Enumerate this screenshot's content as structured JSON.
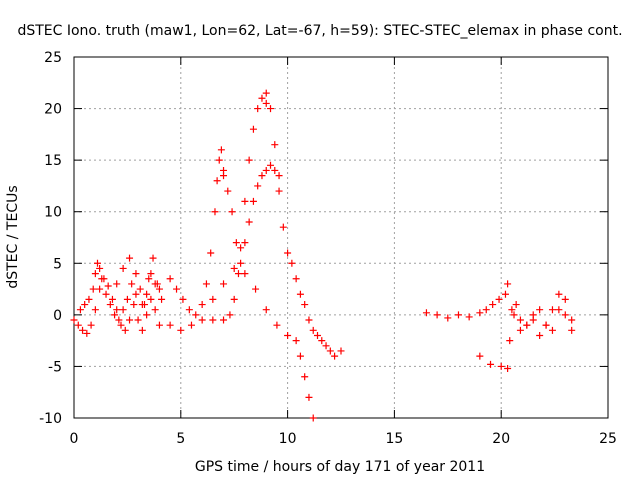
{
  "chart_data": {
    "type": "scatter",
    "title": "dSTEC Iono. truth (maw1, Lon=62, Lat=-67, h=59): STEC-STEC_elemax in phase cont.",
    "xlabel": "GPS time / hours of day 171 of year 2011",
    "ylabel": "dSTEC  / TECUs",
    "xlim": [
      0,
      25
    ],
    "ylim": [
      -10,
      25
    ],
    "xticks": [
      0,
      5,
      10,
      15,
      20,
      25
    ],
    "yticks": [
      -10,
      -5,
      0,
      5,
      10,
      15,
      20,
      25
    ],
    "grid": true,
    "marker": "+",
    "color": "#ff0000",
    "series": [
      {
        "x": [
          0.0,
          0.2,
          0.4,
          0.6,
          0.8,
          1.0,
          1.2,
          1.4,
          1.6,
          1.8,
          2.0,
          2.2,
          2.4,
          2.6,
          2.8,
          3.0,
          3.2,
          3.4,
          3.6,
          3.8,
          4.0
        ],
        "y": [
          -0.5,
          -1.0,
          -1.5,
          -1.8,
          -1.0,
          0.5,
          2.5,
          3.5,
          2.8,
          1.5,
          0.5,
          -1.0,
          -1.5,
          -0.5,
          1.0,
          -0.5,
          -1.5,
          0.0,
          1.5,
          0.5,
          -1.0
        ]
      },
      {
        "x": [
          0.3,
          0.5,
          0.7,
          0.9,
          1.0,
          1.1,
          1.2,
          1.3,
          1.5,
          1.7,
          1.9,
          2.1,
          2.3,
          2.5,
          2.7,
          2.9,
          3.1,
          3.3,
          3.5,
          3.7,
          3.9,
          4.1
        ],
        "y": [
          0.5,
          1.0,
          1.5,
          2.5,
          4.0,
          5.0,
          4.5,
          3.5,
          2.0,
          1.0,
          0.0,
          -0.5,
          0.5,
          1.5,
          3.0,
          4.0,
          2.5,
          1.0,
          3.5,
          5.5,
          3.0,
          1.5
        ]
      },
      {
        "x": [
          2.0,
          2.3,
          2.6,
          2.9,
          3.2,
          3.4,
          3.6,
          3.8,
          4.0
        ],
        "y": [
          3.0,
          4.5,
          5.5,
          2.0,
          1.0,
          2.0,
          4.0,
          3.0,
          2.5
        ]
      },
      {
        "x": [
          4.5,
          4.8,
          5.1,
          5.4,
          5.7,
          6.0,
          6.2,
          6.4,
          6.6,
          6.7,
          6.8,
          6.9,
          7.0
        ],
        "y": [
          3.5,
          2.5,
          1.5,
          0.5,
          0.0,
          1.0,
          3.0,
          6.0,
          10.0,
          13.0,
          15.0,
          16.0,
          14.0
        ]
      },
      {
        "x": [
          4.5,
          5.0,
          5.5,
          6.0,
          6.5,
          7.0,
          7.3,
          7.5,
          7.7,
          7.8,
          8.0,
          8.2,
          8.4,
          8.6,
          8.8,
          9.0
        ],
        "y": [
          -1.0,
          -1.5,
          -1.0,
          -0.5,
          -0.5,
          -0.5,
          0.0,
          1.5,
          4.0,
          6.5,
          11.0,
          15.0,
          18.0,
          20.0,
          21.0,
          21.5
        ]
      },
      {
        "x": [
          9.0,
          9.2,
          9.4,
          9.6,
          9.8,
          10.0,
          10.2,
          10.4,
          10.6,
          10.8,
          11.0,
          11.2,
          11.4,
          11.6,
          11.8,
          12.0,
          12.2,
          12.5
        ],
        "y": [
          20.5,
          20.0,
          16.5,
          12.0,
          8.5,
          6.0,
          5.0,
          3.5,
          2.0,
          1.0,
          -0.5,
          -1.5,
          -2.0,
          -2.5,
          -3.0,
          -3.5,
          -4.0,
          -3.5
        ]
      },
      {
        "x": [
          7.0,
          7.2,
          7.4,
          7.6,
          7.8,
          8.0,
          8.2,
          8.4,
          8.6,
          8.8,
          9.0,
          9.2,
          9.4,
          9.6
        ],
        "y": [
          13.5,
          12.0,
          10.0,
          7.0,
          5.0,
          7.0,
          9.0,
          11.0,
          12.5,
          13.5,
          14.0,
          14.5,
          14.0,
          13.5
        ]
      },
      {
        "x": [
          6.5,
          7.0,
          7.5,
          8.0,
          8.5,
          9.0,
          9.5,
          10.0,
          10.4,
          10.6,
          10.8,
          11.0,
          11.2
        ],
        "y": [
          1.5,
          3.0,
          4.5,
          4.0,
          2.5,
          0.5,
          -1.0,
          -2.0,
          -2.5,
          -4.0,
          -6.0,
          -8.0,
          -10.0
        ]
      },
      {
        "x": [
          16.5,
          17.0,
          17.5,
          18.0,
          18.5,
          19.0,
          19.3,
          19.6,
          19.9,
          20.2
        ],
        "y": [
          0.2,
          0.0,
          -0.3,
          0.0,
          -0.2,
          0.2,
          0.5,
          1.0,
          1.5,
          2.0
        ]
      },
      {
        "x": [
          19.0,
          19.5,
          20.0,
          20.3,
          20.4,
          20.5,
          20.7,
          20.9,
          21.2,
          21.5,
          21.8,
          22.1,
          22.4,
          22.7,
          23.0,
          23.3
        ],
        "y": [
          -4.0,
          -4.8,
          -5.0,
          -5.2,
          -2.5,
          0.5,
          1.0,
          -0.5,
          -1.0,
          -0.5,
          0.5,
          -1.0,
          -1.5,
          0.5,
          1.5,
          -0.5
        ]
      },
      {
        "x": [
          20.3,
          20.6,
          20.9,
          21.2,
          21.5,
          21.8,
          22.1,
          22.4,
          22.7,
          23.0,
          23.3
        ],
        "y": [
          3.0,
          0.0,
          -1.5,
          -1.0,
          0.0,
          -2.0,
          -1.0,
          0.5,
          2.0,
          0.0,
          -1.5
        ]
      }
    ]
  }
}
